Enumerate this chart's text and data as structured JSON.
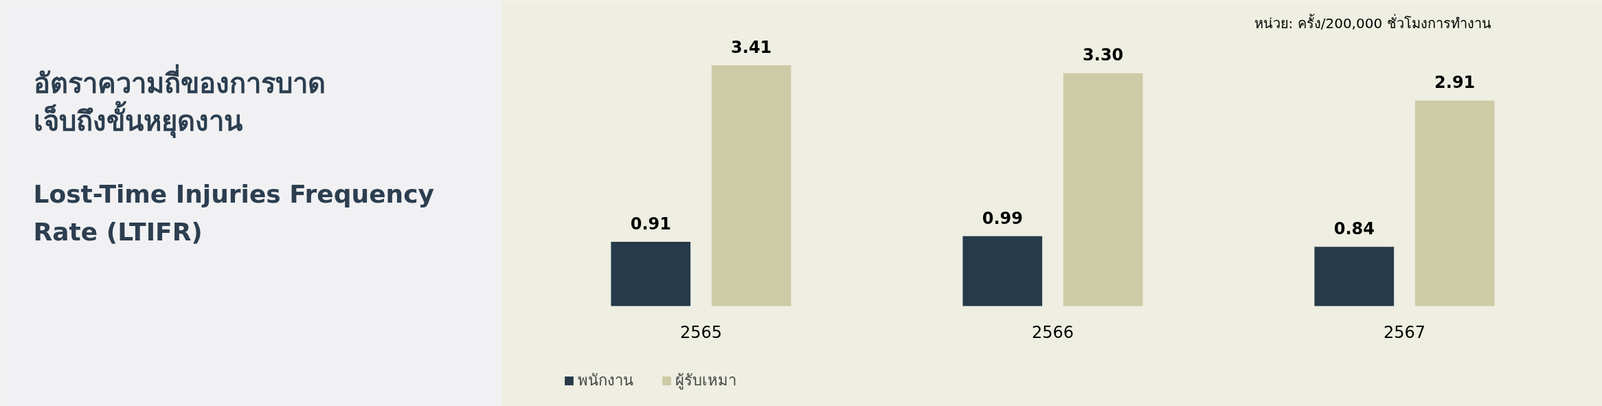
{
  "chart_data": {
    "type": "bar",
    "title": "อัตราความถี่ของการบาดเจ็บถึงขั้นหยุดงาน",
    "subtitle": "Lost-Time Injuries Frequency Rate (LTIFR)",
    "annotations": [
      "หน่วย: ครั้ง/200,000 ชั่วโมงการทำงาน"
    ],
    "categories": [
      "2565",
      "2566",
      "2567"
    ],
    "series": [
      {
        "name": "พนักงาน",
        "color": "#263a4a",
        "values": [
          0.91,
          0.99,
          0.84
        ],
        "value_labels": [
          "0.91",
          "0.99",
          "0.84"
        ]
      },
      {
        "name": "ผู้รับเหมา",
        "color": "#cccba5",
        "values": [
          3.41,
          3.3,
          2.91
        ],
        "value_labels": [
          "3.41",
          "3.30",
          "2.91"
        ]
      }
    ],
    "legend": "bottom left"
  }
}
